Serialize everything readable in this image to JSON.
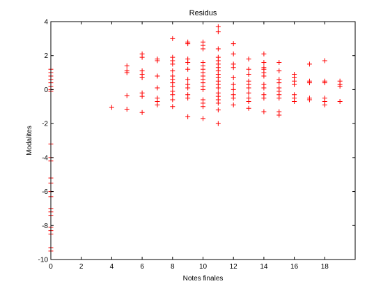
{
  "chart_data": {
    "type": "scatter",
    "title": "Residus",
    "xlabel": "Notes finales",
    "ylabel": "Modalites",
    "xlim": [
      0,
      20
    ],
    "ylim": [
      -10,
      4
    ],
    "xticks": [
      "0",
      "2",
      "4",
      "6",
      "8",
      "10",
      "12",
      "14",
      "16",
      "18"
    ],
    "yticks": [
      "-10",
      "-8",
      "-6",
      "-4",
      "-2",
      "0",
      "2",
      "4"
    ],
    "marker": "+",
    "marker_color": "#ff0000",
    "grid": false,
    "legend": "none",
    "series": [
      {
        "points": [
          [
            0,
            1.2
          ],
          [
            0,
            1.0
          ],
          [
            0,
            0.8
          ],
          [
            0,
            0.6
          ],
          [
            0,
            0.4
          ],
          [
            0,
            0.2
          ],
          [
            0,
            0.0
          ],
          [
            0,
            -0.1
          ],
          [
            0,
            -3.2
          ],
          [
            0,
            -4.0
          ],
          [
            0,
            -4.2
          ],
          [
            0,
            -5.2
          ],
          [
            0,
            -5.5
          ],
          [
            0,
            -6.0
          ],
          [
            0,
            -6.3
          ],
          [
            0,
            -7.0
          ],
          [
            0,
            -7.2
          ],
          [
            0,
            -7.4
          ],
          [
            0,
            -8.1
          ],
          [
            0,
            -8.3
          ],
          [
            0,
            -8.5
          ],
          [
            0,
            -9.3
          ],
          [
            0,
            -9.5
          ],
          [
            4,
            -1.05
          ],
          [
            5,
            1.4
          ],
          [
            5,
            1.1
          ],
          [
            5,
            1.0
          ],
          [
            5,
            -0.35
          ],
          [
            5,
            -1.15
          ],
          [
            6,
            2.1
          ],
          [
            6,
            1.9
          ],
          [
            6,
            1.1
          ],
          [
            6,
            0.9
          ],
          [
            6,
            0.7
          ],
          [
            6,
            -0.2
          ],
          [
            6,
            -0.4
          ],
          [
            6,
            -1.35
          ],
          [
            7,
            1.8
          ],
          [
            7,
            1.7
          ],
          [
            7,
            0.8
          ],
          [
            7,
            0.1
          ],
          [
            7,
            -0.5
          ],
          [
            7,
            -0.7
          ],
          [
            7,
            -0.9
          ],
          [
            8,
            3.0
          ],
          [
            8,
            1.9
          ],
          [
            8,
            1.7
          ],
          [
            8,
            1.5
          ],
          [
            8,
            1.1
          ],
          [
            8,
            0.8
          ],
          [
            8,
            0.6
          ],
          [
            8,
            0.4
          ],
          [
            8,
            0.2
          ],
          [
            8,
            -0.1
          ],
          [
            8,
            -0.3
          ],
          [
            8,
            -0.6
          ],
          [
            8,
            -1.0
          ],
          [
            9,
            2.8
          ],
          [
            9,
            2.7
          ],
          [
            9,
            1.8
          ],
          [
            9,
            1.6
          ],
          [
            9,
            1.2
          ],
          [
            9,
            0.6
          ],
          [
            9,
            0.3
          ],
          [
            9,
            0.1
          ],
          [
            9,
            -0.3
          ],
          [
            9,
            -0.5
          ],
          [
            9,
            -1.6
          ],
          [
            10,
            2.8
          ],
          [
            10,
            2.6
          ],
          [
            10,
            2.4
          ],
          [
            10,
            1.6
          ],
          [
            10,
            1.4
          ],
          [
            10,
            1.2
          ],
          [
            10,
            1.0
          ],
          [
            10,
            0.8
          ],
          [
            10,
            0.6
          ],
          [
            10,
            0.4
          ],
          [
            10,
            0.2
          ],
          [
            10,
            0.0
          ],
          [
            10,
            -0.6
          ],
          [
            10,
            -0.8
          ],
          [
            10,
            -1.0
          ],
          [
            10,
            -1.7
          ],
          [
            11,
            3.7
          ],
          [
            11,
            3.4
          ],
          [
            11,
            2.4
          ],
          [
            11,
            1.9
          ],
          [
            11,
            1.7
          ],
          [
            11,
            1.5
          ],
          [
            11,
            1.3
          ],
          [
            11,
            1.1
          ],
          [
            11,
            0.9
          ],
          [
            11,
            0.7
          ],
          [
            11,
            0.5
          ],
          [
            11,
            0.3
          ],
          [
            11,
            0.1
          ],
          [
            11,
            -0.2
          ],
          [
            11,
            -0.4
          ],
          [
            11,
            -0.6
          ],
          [
            11,
            -0.8
          ],
          [
            11,
            -1.2
          ],
          [
            11,
            -2.0
          ],
          [
            12,
            2.7
          ],
          [
            12,
            2.1
          ],
          [
            12,
            1.5
          ],
          [
            12,
            1.3
          ],
          [
            12,
            0.7
          ],
          [
            12,
            0.3
          ],
          [
            12,
            0.0
          ],
          [
            12,
            -0.3
          ],
          [
            12,
            -0.5
          ],
          [
            12,
            -0.9
          ],
          [
            13,
            1.8
          ],
          [
            13,
            1.2
          ],
          [
            13,
            0.9
          ],
          [
            13,
            0.5
          ],
          [
            13,
            0.3
          ],
          [
            13,
            0.1
          ],
          [
            13,
            -0.2
          ],
          [
            13,
            -0.5
          ],
          [
            13,
            -0.7
          ],
          [
            13,
            -1.1
          ],
          [
            14,
            2.1
          ],
          [
            14,
            1.6
          ],
          [
            14,
            1.3
          ],
          [
            14,
            1.2
          ],
          [
            14,
            1.0
          ],
          [
            14,
            0.8
          ],
          [
            14,
            0.3
          ],
          [
            14,
            0.1
          ],
          [
            14,
            -0.3
          ],
          [
            14,
            -0.5
          ],
          [
            14,
            -1.3
          ],
          [
            15,
            1.6
          ],
          [
            15,
            1.1
          ],
          [
            15,
            0.6
          ],
          [
            15,
            0.4
          ],
          [
            15,
            0.1
          ],
          [
            15,
            -0.1
          ],
          [
            15,
            -0.3
          ],
          [
            15,
            -0.5
          ],
          [
            15,
            -1.3
          ],
          [
            15,
            -1.5
          ],
          [
            16,
            0.9
          ],
          [
            16,
            0.7
          ],
          [
            16,
            0.5
          ],
          [
            16,
            0.3
          ],
          [
            16,
            -0.3
          ],
          [
            16,
            -0.5
          ],
          [
            16,
            -0.7
          ],
          [
            17,
            1.5
          ],
          [
            17,
            0.5
          ],
          [
            17,
            0.4
          ],
          [
            17,
            -0.5
          ],
          [
            17,
            -0.6
          ],
          [
            18,
            1.7
          ],
          [
            18,
            0.5
          ],
          [
            18,
            0.4
          ],
          [
            18,
            -0.5
          ],
          [
            18,
            -0.7
          ],
          [
            18,
            -0.9
          ],
          [
            19,
            0.5
          ],
          [
            19,
            0.3
          ],
          [
            19,
            0.2
          ],
          [
            19,
            -0.7
          ]
        ]
      }
    ]
  }
}
